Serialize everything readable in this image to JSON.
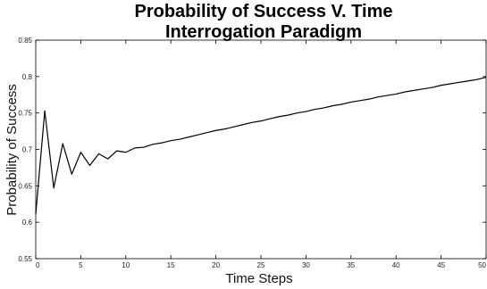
{
  "chart_data": {
    "type": "line",
    "title": [
      "Probability of Success V. Time",
      "Interrogation Paradigm"
    ],
    "xlabel": "Time Steps",
    "ylabel": "Probability of Success",
    "xlim": [
      0,
      50
    ],
    "ylim": [
      0.55,
      0.85
    ],
    "xticks": [
      0,
      5,
      10,
      15,
      20,
      25,
      30,
      35,
      40,
      45,
      50
    ],
    "xtick_labels": [
      "0",
      "5",
      "10",
      "15",
      "20",
      "25",
      "30",
      "35",
      "40",
      "45",
      "50"
    ],
    "yticks": [
      0.55,
      0.6,
      0.65,
      0.7,
      0.75,
      0.8,
      0.85
    ],
    "ytick_labels": [
      "0.55",
      "0.6",
      "0.65",
      "0.7",
      "0.75",
      "0.8",
      "0.85"
    ],
    "grid": false,
    "line_color": "#000000",
    "series": [
      {
        "x": [
          0,
          1,
          2,
          3,
          4,
          5,
          6,
          7,
          8,
          9,
          10,
          11,
          12,
          13,
          14,
          15,
          16,
          17,
          18,
          19,
          20,
          21,
          22,
          23,
          24,
          25,
          26,
          27,
          28,
          29,
          30,
          31,
          32,
          33,
          34,
          35,
          36,
          37,
          38,
          39,
          40,
          41,
          42,
          43,
          44,
          45,
          46,
          47,
          48,
          49,
          50
        ],
        "values": [
          0.611,
          0.753,
          0.647,
          0.708,
          0.666,
          0.696,
          0.678,
          0.694,
          0.687,
          0.698,
          0.696,
          0.702,
          0.703,
          0.707,
          0.709,
          0.712,
          0.714,
          0.717,
          0.72,
          0.723,
          0.726,
          0.728,
          0.731,
          0.734,
          0.737,
          0.739,
          0.742,
          0.745,
          0.747,
          0.75,
          0.752,
          0.755,
          0.757,
          0.76,
          0.762,
          0.765,
          0.767,
          0.769,
          0.772,
          0.774,
          0.776,
          0.779,
          0.781,
          0.783,
          0.785,
          0.788,
          0.79,
          0.792,
          0.794,
          0.796,
          0.799
        ]
      }
    ]
  }
}
